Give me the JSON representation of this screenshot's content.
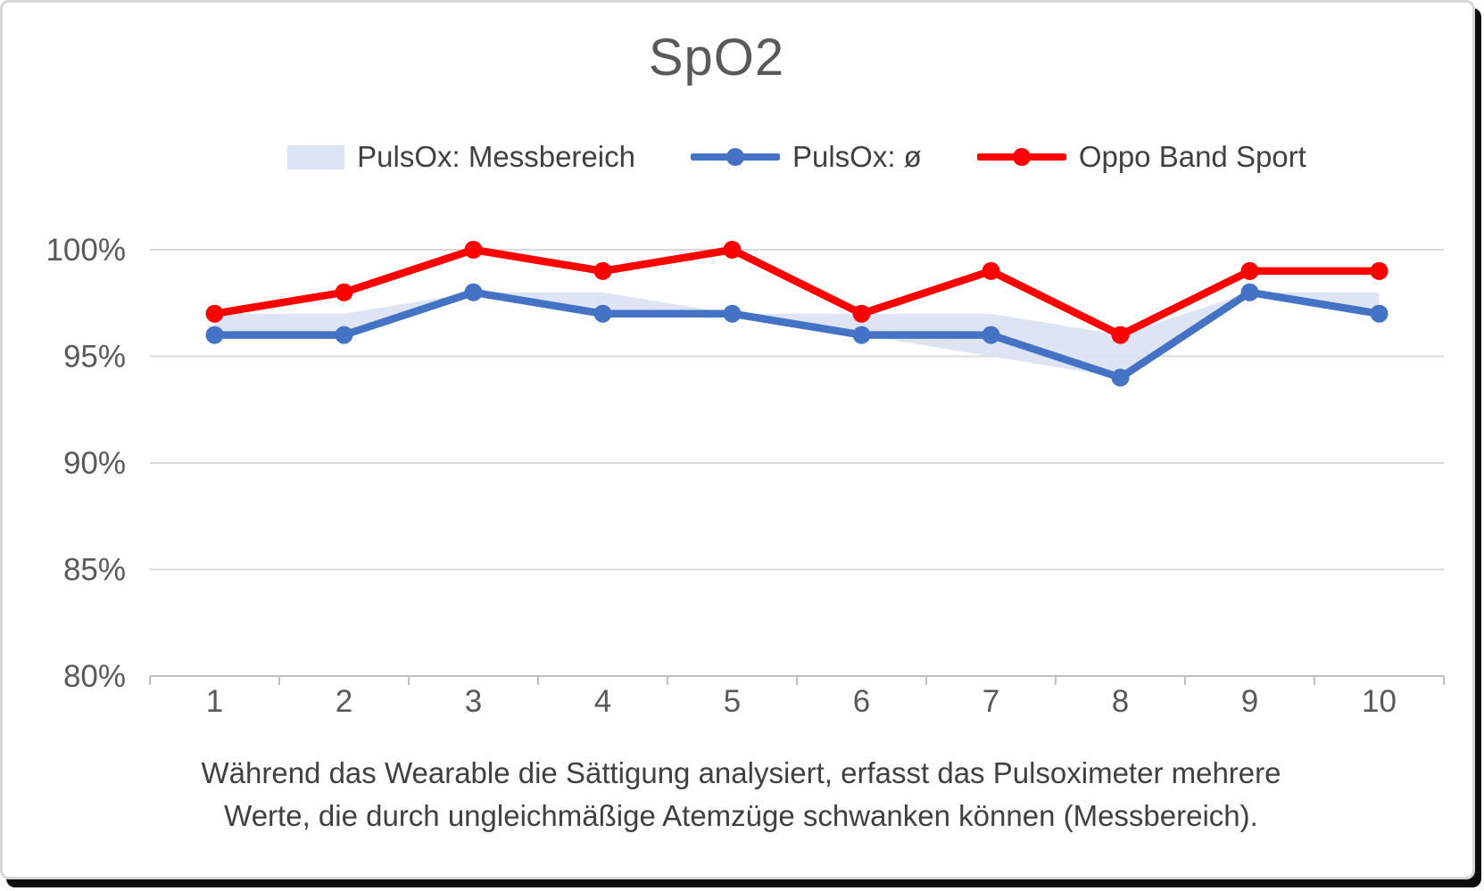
{
  "title": "SpO2",
  "legend": {
    "items": [
      {
        "label": "PulsOx: Messbereich",
        "swatch": "band",
        "color": "#dce3f3"
      },
      {
        "label": "PulsOx: ø",
        "swatch": "line-marker",
        "color": "#4472c4"
      },
      {
        "label": "Oppo Band Sport",
        "swatch": "line-marker",
        "color": "#ff0000"
      }
    ]
  },
  "caption": {
    "lines": [
      "Während das Wearable die Sättigung analysiert, erfasst das Pulsoximeter mehrere",
      "Werte, die durch ungleichmäßige Atemzüge schwanken können (Messbereich)."
    ]
  },
  "chart_data": {
    "type": "line",
    "title": "SpO2",
    "categories": [
      "1",
      "2",
      "3",
      "4",
      "5",
      "6",
      "7",
      "8",
      "9",
      "10"
    ],
    "ylim": [
      80,
      100
    ],
    "y_ticks": [
      100,
      95,
      90,
      85,
      80
    ],
    "y_tick_labels": [
      "100%",
      "95%",
      "90%",
      "85%",
      "80%"
    ],
    "grid": true,
    "legend_position": "top",
    "colors": {
      "grid": "#d9d9d9",
      "axis": "#bfbfbf",
      "tick_text": "#595959",
      "title_text": "#595959",
      "caption_text": "#404040"
    },
    "series": [
      {
        "name": "PulsOx: Messbereich",
        "type": "band",
        "fill": "#dce3f3",
        "lower": [
          96,
          96,
          98,
          97,
          97,
          96,
          95,
          94,
          98,
          97
        ],
        "upper": [
          97,
          97,
          98,
          98,
          97,
          97,
          97,
          96,
          98,
          98
        ]
      },
      {
        "name": "PulsOx: ø",
        "type": "line",
        "color": "#4472c4",
        "values": [
          96,
          96,
          98,
          97,
          97,
          96,
          96,
          94,
          98,
          97
        ]
      },
      {
        "name": "Oppo Band Sport",
        "type": "line",
        "color": "#ff0000",
        "values": [
          97,
          98,
          100,
          99,
          100,
          97,
          99,
          96,
          99,
          99
        ]
      }
    ]
  }
}
